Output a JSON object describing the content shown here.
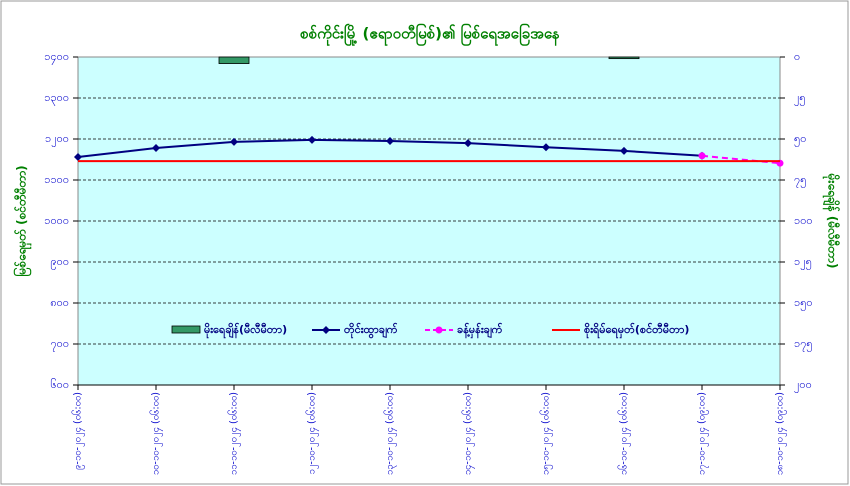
{
  "chart_data": {
    "type": "line",
    "title": "စစ်ကိုင်းမြို့ (ဧရာဝတီမြစ်)၏ မြစ်ရေအခြေအနေ",
    "ylabel": "မြစ်ရေမှတ် (စင်တီမီတာ)",
    "y2label": "မိုးရေချိန် (မီလီမီတာ)",
    "categories": [
      "၉-၁၀-၂၀၂၄ (၀၆:၀၀)",
      "၁၀-၁၀-၂၀၂၄ (၀၆:၀၀)",
      "၁၁-၁၀-၂၀၂၄ (၀၆:၀၀)",
      "၁၂-၁၀-၂၀၂၄ (၀၆:၀၀)",
      "၁၃-၁၀-၂၀၂၄ (၀၆:၀၀)",
      "၁၄-၁၀-၂၀၂၄ (၀၆:၀၀)",
      "၁၅-၁၀-၂၀၂၄ (၀၆:၀၀)",
      "၁၆-၁၀-၂၀၂၄ (၀၆:၀၀)",
      "၁၇-၁၀-၂၀၂၄ (၀၉:၀၀)",
      "၁၈-၁၀-၂၀၂၄ (၀၉:၀၀)"
    ],
    "ylim": [
      600,
      1400
    ],
    "yticks": [
      {
        "value": 600,
        "label": "၆၀၀"
      },
      {
        "value": 700,
        "label": "၇၀၀"
      },
      {
        "value": 800,
        "label": "၈၀၀"
      },
      {
        "value": 900,
        "label": "၉၀၀"
      },
      {
        "value": 1000,
        "label": "၁၀၀၀"
      },
      {
        "value": 1100,
        "label": "၁၁၀၀"
      },
      {
        "value": 1200,
        "label": "၁၂၀၀"
      },
      {
        "value": 1300,
        "label": "၁၃၀၀"
      },
      {
        "value": 1400,
        "label": "၁၄၀၀"
      }
    ],
    "y2lim": [
      0,
      200
    ],
    "y2ticks": [
      {
        "value": 0,
        "label": "၀"
      },
      {
        "value": 25,
        "label": "၂၅"
      },
      {
        "value": 50,
        "label": "၅၀"
      },
      {
        "value": 75,
        "label": "၇၅"
      },
      {
        "value": 100,
        "label": "၁၀၀"
      },
      {
        "value": 125,
        "label": "၁၂၅"
      },
      {
        "value": 150,
        "label": "၁၅၀"
      },
      {
        "value": 175,
        "label": "၁၇၅"
      },
      {
        "value": 200,
        "label": "၂၀၀"
      }
    ],
    "y2_inverted": true,
    "grid": true,
    "legend": "bottom",
    "series": [
      {
        "name": "မိုးရေချိန်(မီလီမီတာ)",
        "type": "bar",
        "axis": "y2",
        "color": "#339966",
        "values": [
          0,
          0,
          4,
          0,
          0,
          0,
          0,
          1,
          0,
          0
        ]
      },
      {
        "name": "တိုင်းထွာချက်",
        "color": "#000080",
        "marker": "diamond",
        "values": [
          1156,
          1178,
          1193,
          1198,
          1195,
          1190,
          1180,
          1171,
          1159,
          null
        ]
      },
      {
        "name": "ခန့်မှန်းချက်",
        "color": "#ff00ff",
        "marker": "circle",
        "dashed": true,
        "values": [
          null,
          null,
          null,
          null,
          null,
          null,
          null,
          null,
          1159,
          1141
        ]
      },
      {
        "name": "စိုးရိမ်ရေမှတ်(စင်တီမီတာ)",
        "color": "#ff0000",
        "values": [
          1146,
          1146,
          1146,
          1146,
          1146,
          1146,
          1146,
          1146,
          1146,
          1146
        ]
      }
    ]
  }
}
